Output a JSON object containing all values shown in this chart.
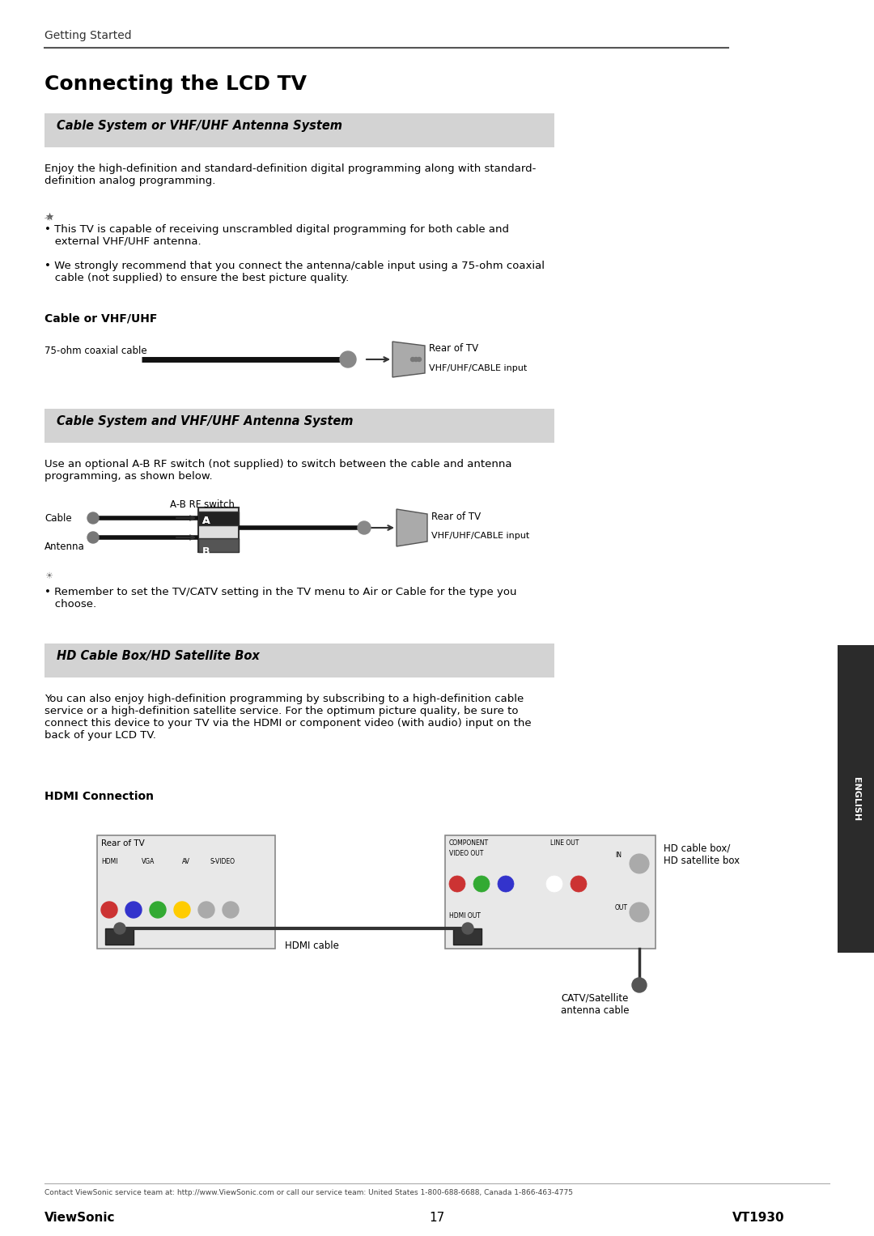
{
  "page_title_small": "Getting Started",
  "page_title_large": "Connecting the LCD TV",
  "section1_header": "Cable System or VHF/UHF Antenna System",
  "section1_body": "Enjoy the high-definition and standard-definition digital programming along with standard-\ndefinition analog programming.",
  "section1_bullet1": "• This TV is capable of receiving unscrambled digital programming for both cable and\n   external VHF/UHF antenna.",
  "section1_bullet2": "• We strongly recommend that you connect the antenna/cable input using a 75-ohm coaxial\n   cable (not supplied) to ensure the best picture quality.",
  "section1_sub": "Cable or VHF/UHF",
  "cable_label": "75-ohm coaxial cable",
  "rear_tv_label1": "Rear of TV",
  "vhf_label": "VHF/UHF/CABLE input",
  "section2_header": "Cable System and VHF/UHF Antenna System",
  "section2_body": "Use an optional A-B RF switch (not supplied) to switch between the cable and antenna\nprogramming, as shown below.",
  "ab_switch_label": "A-B RF switch",
  "cable_label2": "Cable",
  "antenna_label": "Antenna",
  "rear_tv_label2": "Rear of TV",
  "vhf_label2": "VHF/UHF/CABLE input",
  "section2_bullet": "• Remember to set the TV/CATV setting in the TV menu to Air or Cable for the type you\n   choose.",
  "section3_header": "HD Cable Box/HD Satellite Box",
  "section3_body": "You can also enjoy high-definition programming by subscribing to a high-definition cable\nservice or a high-definition satellite service. For the optimum picture quality, be sure to\nconnect this device to your TV via the HDMI or component video (with audio) input on the\nback of your LCD TV.",
  "section3_sub": "HDMI Connection",
  "rear_tv_label3": "Rear of TV",
  "hd_box_label": "HD cable box/\nHD satellite box",
  "hdmi_cable_label": "HDMI cable",
  "catv_label": "CATV/Satellite\nantenna cable",
  "footer_left": "ViewSonic",
  "footer_center": "17",
  "footer_right": "VT1930",
  "footer_small": "Contact ViewSonic service team at: http://www.ViewSonic.com or call our service team: United States 1-800-688-6688, Canada 1-866-463-4775",
  "bg_color": "#ffffff",
  "header_bg": "#d3d3d3",
  "sidebar_color": "#2b2b2b",
  "text_color": "#000000",
  "line_color": "#555555"
}
